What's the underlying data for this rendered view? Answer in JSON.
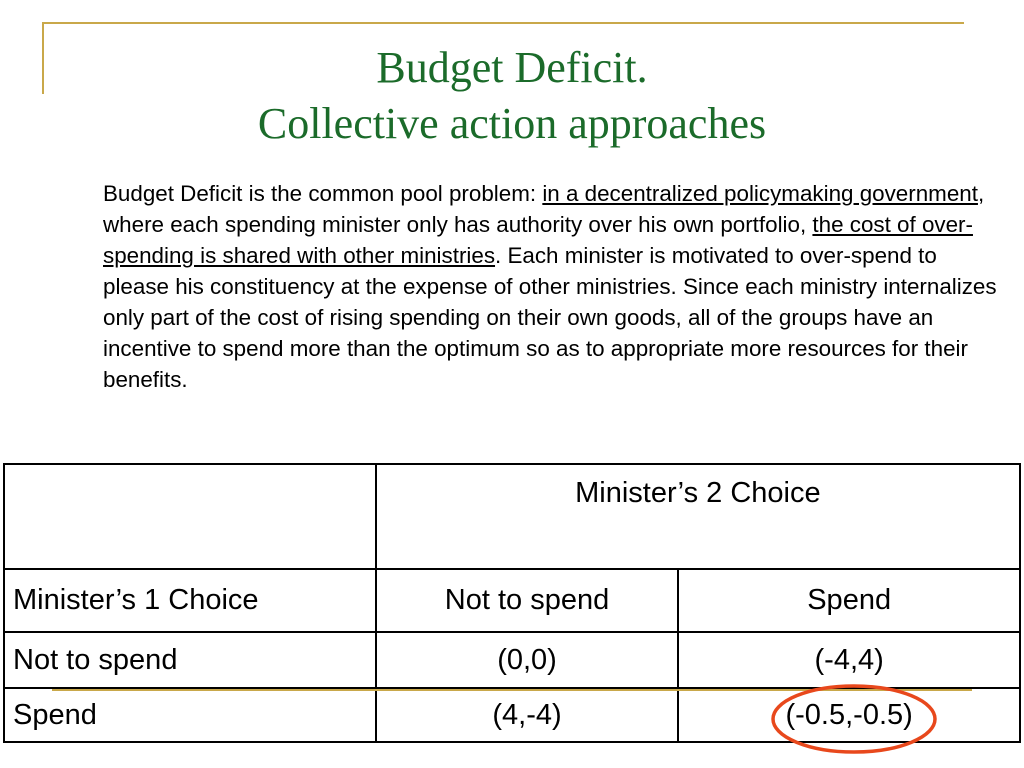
{
  "slide": {
    "title_line1": "Budget Deficit.",
    "title_line2": "Collective action approaches",
    "body": {
      "p1": "Budget Deficit is the common pool problem: ",
      "u1": "in a decentralized policymaking government",
      "p2": ", where each spending minister only has authority over his own portfolio, ",
      "u2": "the cost of over-spending is shared with other ministries",
      "p3": ". Each minister is motivated to over-spend to please his constituency at the expense of other ministries. Since each ministry internalizes only part of the cost of rising spending on their own goods, all of the groups have an incentive to spend more than the optimum so as to appropriate more resources for their benefits."
    }
  },
  "table": {
    "col_header": "Minister’s 2 Choice",
    "row_header": "Minister’s 1 Choice",
    "col_options": [
      "Not to spend",
      "Spend"
    ],
    "rows": [
      {
        "label": "Not to spend",
        "cells": [
          "(0,0)",
          "(-4,4)"
        ]
      },
      {
        "label": "Spend",
        "cells": [
          "(4,-4)",
          "(-0.5,-0.5)"
        ]
      }
    ]
  },
  "colors": {
    "title": "#1b6b2a",
    "accent_line": "#c9a84a",
    "highlight_circle": "#e8481c"
  }
}
